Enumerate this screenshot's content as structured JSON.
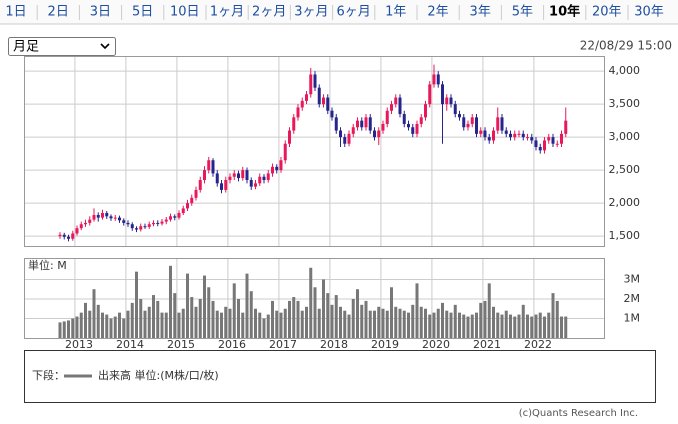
{
  "tabs": [
    "1日",
    "2日",
    "3日",
    "5日",
    "10日",
    "1ヶ月",
    "2ヶ月",
    "3ヶ月",
    "6ヶ月",
    "1年",
    "2年",
    "3年",
    "5年",
    "10年",
    "20年",
    "30年"
  ],
  "selected_tab": 13,
  "select_label": "月足",
  "timestamp": "22/08/29 15:00",
  "legend": {
    "prefix": "下段：",
    "text": "出来高 単位:(M株/口/枚)"
  },
  "copyright": "(c)Quants Research Inc.",
  "chart_data": [
    {
      "type": "candlestick",
      "up_color": "#e8185b",
      "down_color": "#25258c",
      "grid": true,
      "ylim": [
        1350,
        4230
      ],
      "yticks": [
        {
          "value": 1500,
          "label": "1,500"
        },
        {
          "value": 2000,
          "label": "2,000"
        },
        {
          "value": 2500,
          "label": "2,500"
        },
        {
          "value": 3000,
          "label": "3,000"
        },
        {
          "value": 3500,
          "label": "3,500"
        },
        {
          "value": 4000,
          "label": "4,000"
        }
      ],
      "categories": [
        null,
        null,
        null,
        null,
        "2013",
        null,
        null,
        null,
        null,
        null,
        null,
        null,
        null,
        null,
        null,
        null,
        "2014",
        null,
        null,
        null,
        null,
        null,
        null,
        null,
        null,
        null,
        null,
        null,
        "2015",
        null,
        null,
        null,
        null,
        null,
        null,
        null,
        null,
        null,
        null,
        null,
        "2016",
        null,
        null,
        null,
        null,
        null,
        null,
        null,
        null,
        null,
        null,
        null,
        "2017",
        null,
        null,
        null,
        null,
        null,
        null,
        null,
        null,
        null,
        null,
        null,
        "2018",
        null,
        null,
        null,
        null,
        null,
        null,
        null,
        null,
        null,
        null,
        null,
        "2019",
        null,
        null,
        null,
        null,
        null,
        null,
        null,
        null,
        null,
        null,
        null,
        "2020",
        null,
        null,
        null,
        null,
        null,
        null,
        null,
        null,
        null,
        null,
        null,
        "2021",
        null,
        null,
        null,
        null,
        null,
        null,
        null,
        null,
        null,
        null,
        null,
        "2022",
        null,
        null,
        null,
        null,
        null,
        null,
        null
      ],
      "ohlc": [
        [
          1500,
          1560,
          1460,
          1520
        ],
        [
          1520,
          1550,
          1450,
          1490
        ],
        [
          1490,
          1520,
          1420,
          1460
        ],
        [
          1460,
          1580,
          1430,
          1540
        ],
        [
          1540,
          1660,
          1510,
          1620
        ],
        [
          1620,
          1720,
          1590,
          1680
        ],
        [
          1680,
          1750,
          1640,
          1700
        ],
        [
          1700,
          1800,
          1660,
          1750
        ],
        [
          1750,
          1920,
          1720,
          1820
        ],
        [
          1820,
          1860,
          1720,
          1780
        ],
        [
          1780,
          1900,
          1750,
          1850
        ],
        [
          1850,
          1880,
          1760,
          1800
        ],
        [
          1800,
          1830,
          1730,
          1770
        ],
        [
          1770,
          1820,
          1730,
          1780
        ],
        [
          1780,
          1810,
          1700,
          1740
        ],
        [
          1740,
          1770,
          1660,
          1700
        ],
        [
          1700,
          1740,
          1640,
          1680
        ],
        [
          1680,
          1710,
          1580,
          1620
        ],
        [
          1620,
          1650,
          1560,
          1600
        ],
        [
          1600,
          1690,
          1570,
          1650
        ],
        [
          1650,
          1690,
          1610,
          1640
        ],
        [
          1640,
          1720,
          1610,
          1680
        ],
        [
          1680,
          1740,
          1650,
          1700
        ],
        [
          1700,
          1740,
          1650,
          1690
        ],
        [
          1690,
          1760,
          1660,
          1720
        ],
        [
          1720,
          1790,
          1680,
          1750
        ],
        [
          1750,
          1840,
          1720,
          1800
        ],
        [
          1800,
          1830,
          1740,
          1780
        ],
        [
          1780,
          1890,
          1750,
          1850
        ],
        [
          1850,
          1960,
          1820,
          1920
        ],
        [
          1920,
          2050,
          1880,
          2000
        ],
        [
          2000,
          2130,
          1960,
          2080
        ],
        [
          2080,
          2250,
          2040,
          2200
        ],
        [
          2200,
          2400,
          2160,
          2350
        ],
        [
          2350,
          2560,
          2300,
          2500
        ],
        [
          2500,
          2700,
          2450,
          2650
        ],
        [
          2650,
          2680,
          2400,
          2450
        ],
        [
          2450,
          2500,
          2250,
          2300
        ],
        [
          2300,
          2350,
          2150,
          2200
        ],
        [
          2200,
          2400,
          2160,
          2350
        ],
        [
          2350,
          2450,
          2300,
          2400
        ],
        [
          2400,
          2500,
          2350,
          2450
        ],
        [
          2450,
          2490,
          2330,
          2380
        ],
        [
          2380,
          2550,
          2340,
          2500
        ],
        [
          2500,
          2540,
          2300,
          2350
        ],
        [
          2350,
          2390,
          2200,
          2250
        ],
        [
          2250,
          2350,
          2210,
          2300
        ],
        [
          2300,
          2450,
          2260,
          2400
        ],
        [
          2400,
          2440,
          2300,
          2350
        ],
        [
          2350,
          2500,
          2310,
          2450
        ],
        [
          2450,
          2600,
          2400,
          2550
        ],
        [
          2550,
          2590,
          2450,
          2500
        ],
        [
          2500,
          2700,
          2460,
          2650
        ],
        [
          2650,
          2950,
          2600,
          2900
        ],
        [
          2900,
          3150,
          2850,
          3100
        ],
        [
          3100,
          3350,
          3050,
          3300
        ],
        [
          3300,
          3500,
          3250,
          3450
        ],
        [
          3450,
          3600,
          3400,
          3550
        ],
        [
          3550,
          3700,
          3500,
          3650
        ],
        [
          3650,
          4050,
          3600,
          3950
        ],
        [
          3950,
          4000,
          3700,
          3750
        ],
        [
          3750,
          3800,
          3450,
          3500
        ],
        [
          3500,
          3650,
          3450,
          3600
        ],
        [
          3600,
          3650,
          3350,
          3400
        ],
        [
          3400,
          3450,
          3250,
          3300
        ],
        [
          3300,
          3350,
          3050,
          3100
        ],
        [
          3100,
          3150,
          2850,
          3000
        ],
        [
          3000,
          3050,
          2850,
          2900
        ],
        [
          2900,
          3100,
          2860,
          3050
        ],
        [
          3050,
          3200,
          3000,
          3150
        ],
        [
          3150,
          3300,
          3100,
          3250
        ],
        [
          3250,
          3300,
          3100,
          3150
        ],
        [
          3150,
          3350,
          3100,
          3300
        ],
        [
          3300,
          3350,
          3050,
          3100
        ],
        [
          3100,
          3150,
          2950,
          3000
        ],
        [
          3000,
          3150,
          2880,
          3100
        ],
        [
          3100,
          3250,
          3050,
          3200
        ],
        [
          3200,
          3450,
          3150,
          3400
        ],
        [
          3400,
          3550,
          3350,
          3500
        ],
        [
          3500,
          3650,
          3450,
          3600
        ],
        [
          3600,
          3650,
          3300,
          3350
        ],
        [
          3350,
          3400,
          3150,
          3200
        ],
        [
          3200,
          3250,
          3100,
          3150
        ],
        [
          3150,
          3200,
          3000,
          3050
        ],
        [
          3050,
          3250,
          3000,
          3200
        ],
        [
          3200,
          3350,
          3150,
          3300
        ],
        [
          3300,
          3550,
          3250,
          3500
        ],
        [
          3500,
          3850,
          3450,
          3800
        ],
        [
          3800,
          4100,
          3750,
          3950
        ],
        [
          3950,
          4000,
          3750,
          3800
        ],
        [
          3800,
          3850,
          2900,
          3500
        ],
        [
          3500,
          3650,
          3400,
          3600
        ],
        [
          3600,
          3650,
          3450,
          3500
        ],
        [
          3500,
          3550,
          3300,
          3350
        ],
        [
          3350,
          3400,
          3250,
          3300
        ],
        [
          3300,
          3350,
          3100,
          3150
        ],
        [
          3150,
          3250,
          3100,
          3200
        ],
        [
          3200,
          3350,
          3150,
          3300
        ],
        [
          3300,
          3350,
          3000,
          3050
        ],
        [
          3050,
          3150,
          3000,
          3100
        ],
        [
          3100,
          3150,
          2950,
          3000
        ],
        [
          3000,
          3050,
          2900,
          2950
        ],
        [
          2950,
          3150,
          2900,
          3100
        ],
        [
          3100,
          3450,
          3050,
          3300
        ],
        [
          3300,
          3350,
          3050,
          3100
        ],
        [
          3100,
          3150,
          3000,
          3050
        ],
        [
          3050,
          3100,
          2950,
          3000
        ],
        [
          3000,
          3100,
          2950,
          3050
        ],
        [
          3050,
          3100,
          3000,
          3050
        ],
        [
          3050,
          3100,
          2950,
          3000
        ],
        [
          3000,
          3050,
          2950,
          3000
        ],
        [
          3000,
          3050,
          2900,
          2950
        ],
        [
          2950,
          3000,
          2800,
          2850
        ],
        [
          2850,
          2900,
          2750,
          2800
        ],
        [
          2800,
          3000,
          2750,
          2950
        ],
        [
          2950,
          3050,
          2900,
          3000
        ],
        [
          3000,
          3050,
          2850,
          2900
        ],
        [
          2900,
          2950,
          2850,
          2900
        ],
        [
          2900,
          3100,
          2850,
          3050
        ],
        [
          3050,
          3450,
          3000,
          3250
        ]
      ]
    },
    {
      "type": "bar",
      "unit_label": "単位: M",
      "color": "#777777",
      "grid": true,
      "ylim": [
        0,
        4.1
      ],
      "yticks": [
        {
          "value": 1,
          "label": "1M"
        },
        {
          "value": 2,
          "label": "2M"
        },
        {
          "value": 3,
          "label": "3M"
        }
      ],
      "values": [
        0.8,
        0.85,
        0.9,
        1.0,
        1.1,
        1.3,
        1.8,
        1.4,
        2.5,
        1.7,
        1.3,
        1.2,
        1.0,
        1.1,
        1.3,
        1.0,
        1.4,
        1.8,
        3.4,
        2.0,
        1.4,
        1.6,
        2.2,
        1.9,
        1.3,
        1.3,
        3.7,
        2.3,
        1.3,
        1.5,
        3.3,
        2.1,
        1.6,
        2.0,
        3.2,
        2.6,
        1.9,
        1.4,
        1.3,
        1.6,
        1.5,
        2.8,
        2.0,
        1.3,
        3.3,
        2.4,
        1.5,
        1.3,
        1.0,
        1.2,
        1.9,
        1.4,
        1.3,
        1.5,
        1.9,
        2.1,
        1.9,
        1.4,
        1.6,
        3.6,
        2.6,
        1.5,
        3.0,
        2.3,
        1.7,
        2.2,
        1.6,
        1.4,
        1.2,
        2.0,
        2.5,
        1.7,
        1.9,
        1.4,
        1.4,
        1.6,
        1.5,
        1.4,
        2.6,
        1.6,
        1.5,
        1.4,
        1.3,
        1.7,
        2.8,
        1.6,
        1.5,
        1.2,
        1.3,
        1.5,
        1.8,
        1.4,
        1.3,
        1.7,
        1.3,
        1.2,
        1.1,
        1.2,
        1.3,
        1.8,
        1.9,
        2.8,
        1.6,
        1.3,
        1.2,
        1.4,
        1.2,
        1.1,
        1.2,
        1.7,
        1.2,
        1.1,
        1.2,
        1.3,
        1.1,
        1.3,
        2.3,
        1.9,
        1.1,
        1.1
      ]
    }
  ]
}
